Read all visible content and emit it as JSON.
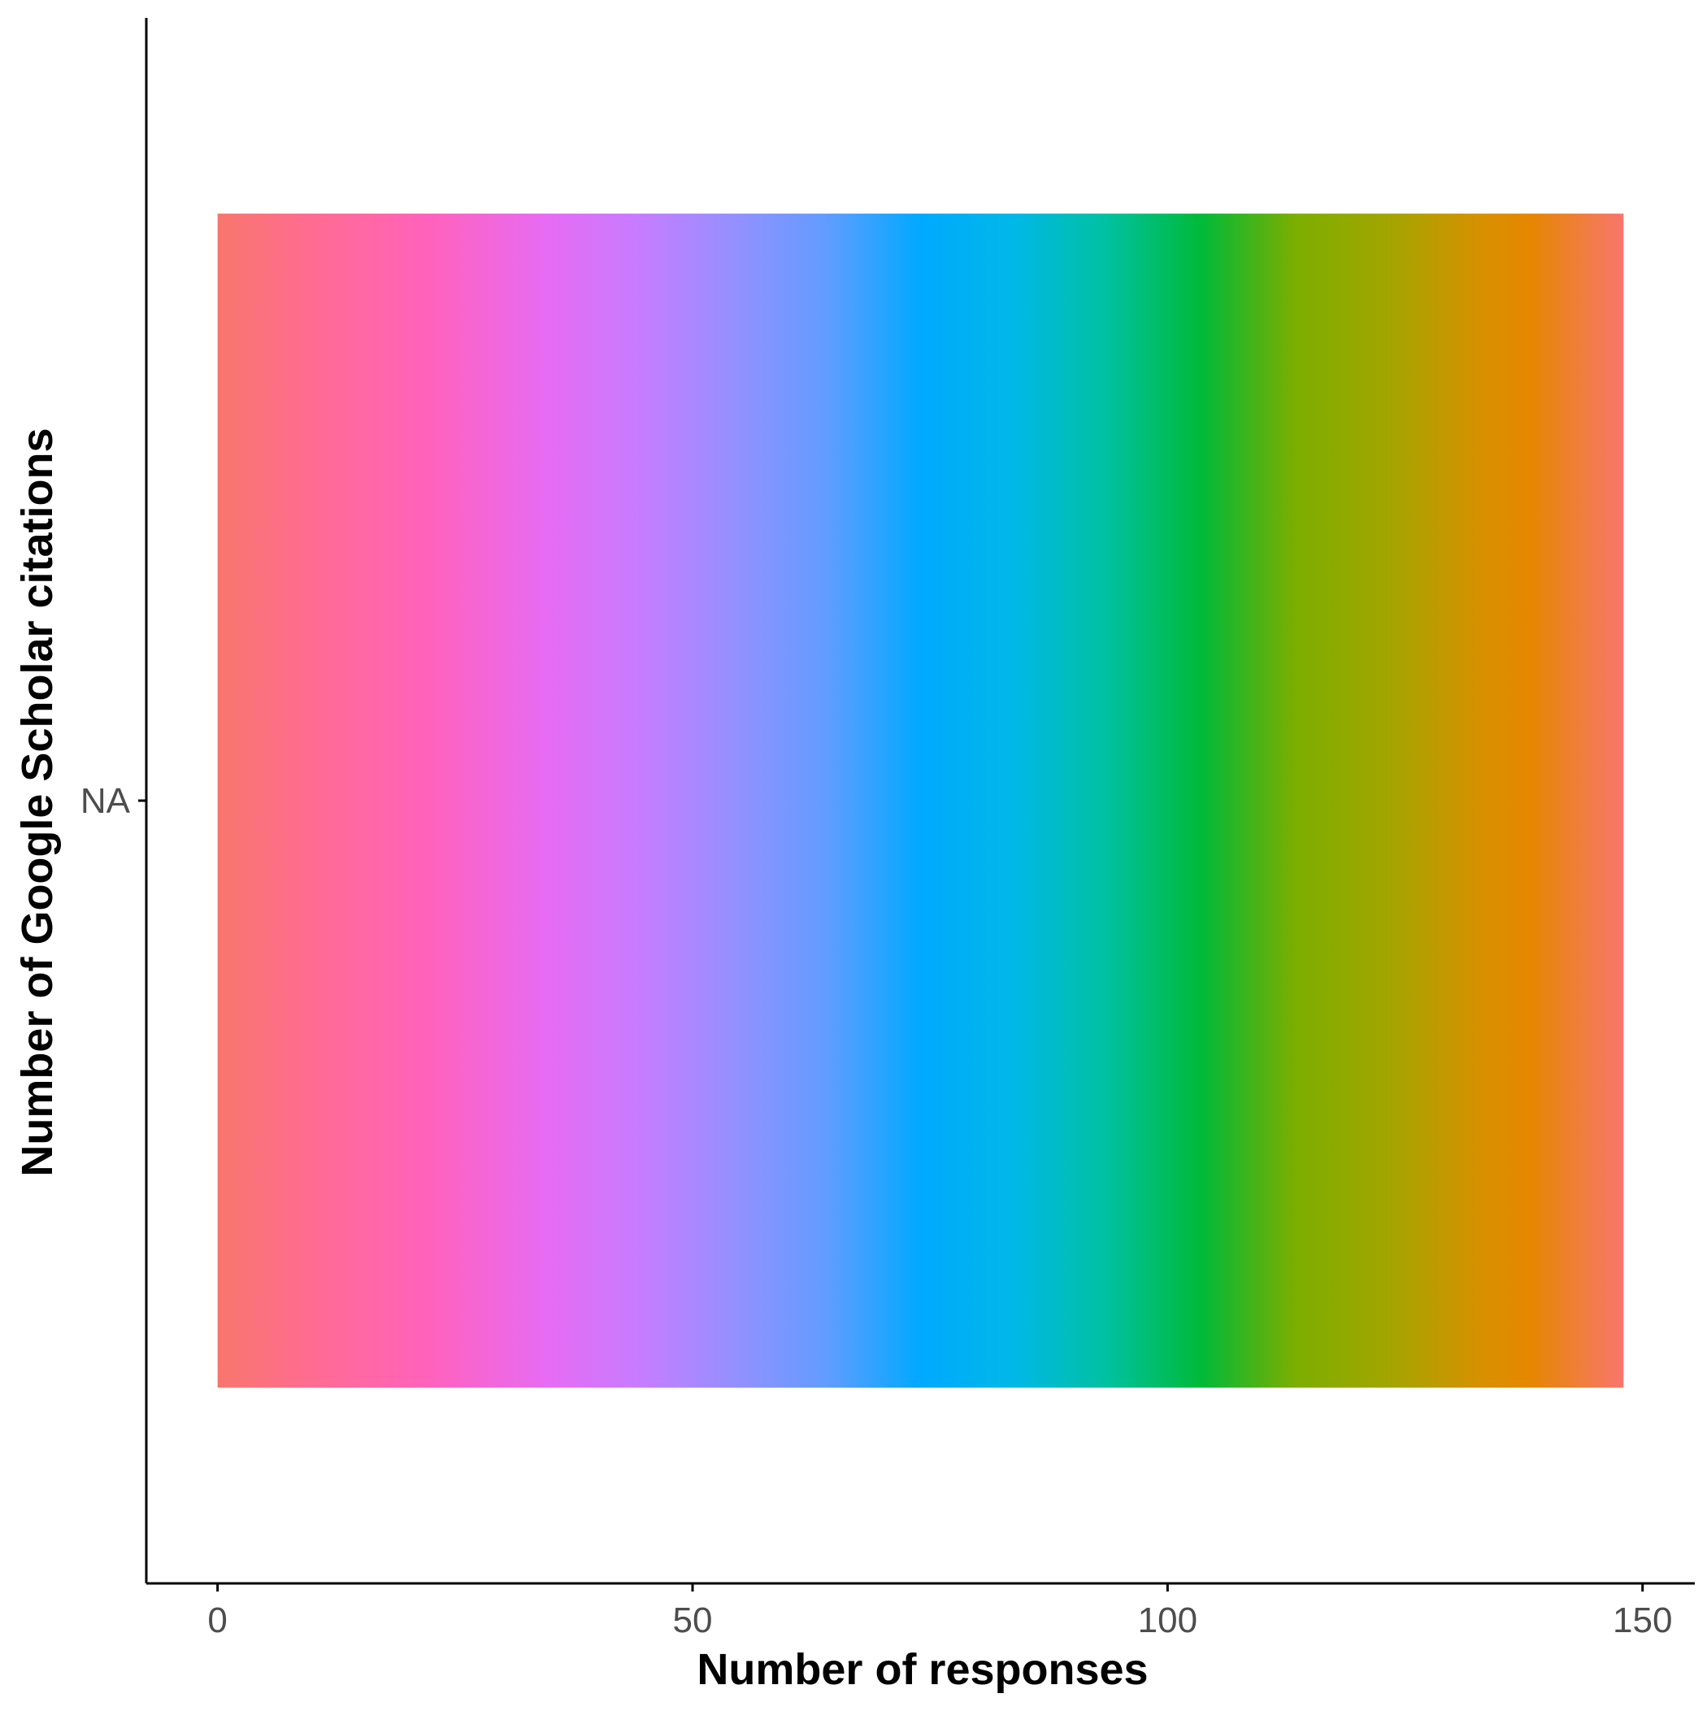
{
  "chart_data": {
    "type": "bar",
    "orientation": "horizontal",
    "title": "",
    "xlabel": "Number of responses",
    "ylabel": "Number of Google Scholar citations",
    "categories": [
      "NA"
    ],
    "values": [
      148
    ],
    "xlim": [
      -7.5,
      155.5
    ],
    "xticks": [
      0,
      50,
      100,
      150
    ],
    "xtick_labels": [
      "0",
      "50",
      "100",
      "150"
    ],
    "grid": false,
    "legend": "none",
    "fill": "rainbow hue gradient (one color per response, stacked)",
    "gradient_stops": [
      {
        "at": 0,
        "color": "#F8766D"
      },
      {
        "at": 0.0667,
        "color": "#FF6C91"
      },
      {
        "at": 0.15,
        "color": "#FF62BC"
      },
      {
        "at": 0.2333,
        "color": "#E76BF3"
      },
      {
        "at": 0.3,
        "color": "#C77CFF"
      },
      {
        "at": 0.3667,
        "color": "#9590FF"
      },
      {
        "at": 0.4333,
        "color": "#619CFF"
      },
      {
        "at": 0.5,
        "color": "#00A9FF"
      },
      {
        "at": 0.5667,
        "color": "#00B8E7"
      },
      {
        "at": 0.6333,
        "color": "#00C19F"
      },
      {
        "at": 0.7,
        "color": "#00BA38"
      },
      {
        "at": 0.7667,
        "color": "#7CAE00"
      },
      {
        "at": 0.8333,
        "color": "#A3A500"
      },
      {
        "at": 0.9,
        "color": "#D89000"
      },
      {
        "at": 0.9333,
        "color": "#E58700"
      },
      {
        "at": 1,
        "color": "#F8766D"
      }
    ],
    "gradient_orientation": "left-to-right, starting at the pink/red end",
    "axis_color": "#000000",
    "tick_label_color": "#4D4D4D"
  }
}
